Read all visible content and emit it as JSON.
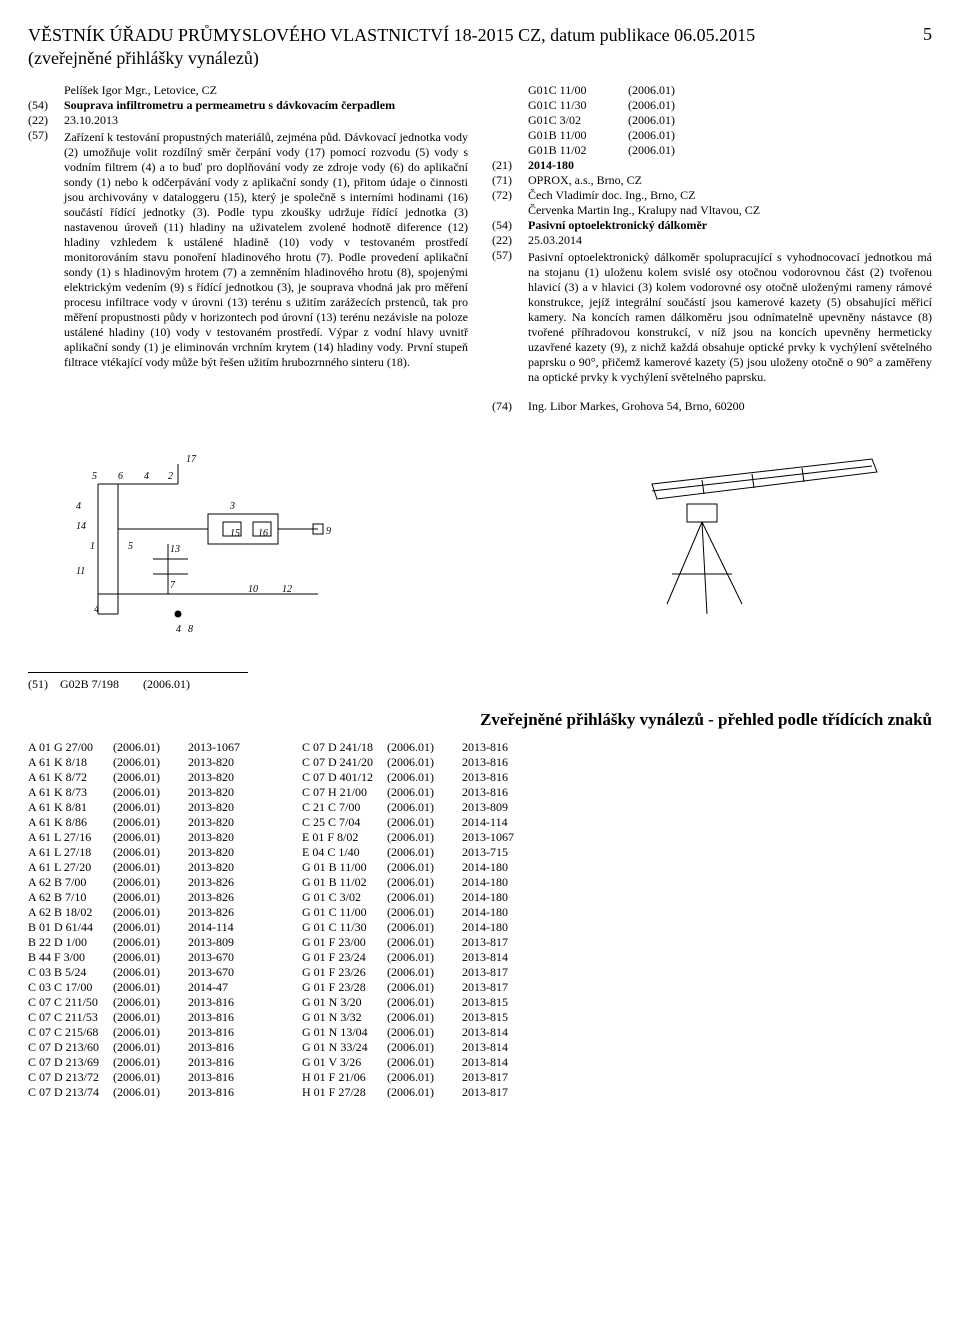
{
  "header": {
    "title_line1": "VĚSTNÍK ÚŘADU PRŮMYSLOVÉHO VLASTNICTVÍ 18-2015 CZ, datum publikace 06.05.2015",
    "title_line2": "(zveřejněné přihlášky vynálezů)",
    "page": "5"
  },
  "left": {
    "author": "Pelíšek Igor Mgr., Letovice, CZ",
    "inid54": "(54)",
    "title": "Souprava infiltrometru a permeametru s dávkovacím čerpadlem",
    "inid22": "(22)",
    "date": "23.10.2013",
    "inid57": "(57)",
    "abstract": "Zařízení k testování propustných materiálů, zejména půd. Dávkovací jednotka vody (2) umožňuje volit rozdílný směr čerpání vody (17) pomocí rozvodu (5) vody s vodním filtrem (4) a to buď pro doplňování vody ze zdroje vody (6) do aplikační sondy (1) nebo k odčerpávání vody z aplikační sondy (1), přitom údaje o činnosti jsou archivovány v dataloggeru (15), který je společně s interními hodinami (16) součástí řídící jednotky (3). Podle typu zkoušky udržuje řídící jednotka (3) nastavenou úroveň (11) hladiny na uživatelem zvolené hodnotě diference (12) hladiny vzhledem k ustálené hladině (10) vody v testovaném prostředí monitorováním stavu ponoření hladinového hrotu (7). Podle provedení aplikační sondy (1) s hladinovým hrotem (7) a zemněním hladinového hrotu (8), spojenými elektrickým vedením (9) s řídící jednotkou (3), je souprava vhodná jak pro měření procesu infiltrace vody v úrovni (13) terénu s užitím zarážecích prstenců, tak pro měření propustnosti půdy v horizontech pod úrovní (13) terénu nezávisle na poloze ustálené hladiny (10) vody v testovaném prostředí. Výpar z vodní hlavy uvnitř aplikační sondy (1) je eliminován vrchním krytem (14) hladiny vody. První stupeň filtrace vtékající vody může být řešen užitím hrubozrnného sinteru (18)."
  },
  "right": {
    "codes": [
      [
        "G01C 11/00",
        "(2006.01)"
      ],
      [
        "G01C 11/30",
        "(2006.01)"
      ],
      [
        "G01C 3/02",
        "(2006.01)"
      ],
      [
        "G01B 11/00",
        "(2006.01)"
      ],
      [
        "G01B 11/02",
        "(2006.01)"
      ]
    ],
    "inid21": "(21)",
    "appnum": "2014-180",
    "inid71": "(71)",
    "applicant": "OPROX, a.s., Brno, CZ",
    "inid72": "(72)",
    "inventor1": "Čech Vladimír doc. Ing., Brno, CZ",
    "inventor2": "Červenka Martin Ing., Kralupy nad Vltavou, CZ",
    "inid54": "(54)",
    "title": "Pasivní optoelektronický dálkoměr",
    "inid22": "(22)",
    "date": "25.03.2014",
    "inid57": "(57)",
    "abstract": "Pasivní optoelektronický dálkoměr spolupracující s vyhodnocovací jednotkou má na stojanu (1) uloženu kolem svislé osy otočnou vodorovnou část (2) tvořenou hlavicí (3) a v hlavici (3) kolem vodorovné osy otočně uloženými rameny rámové konstrukce, jejíž integrální součástí jsou kamerové kazety (5) obsahující měřicí kamery. Na koncích ramen dálkoměru jsou odnímatelně upevněny nástavce (8) tvořené příhradovou konstrukcí, v níž jsou na koncích upevněny hermeticky uzavřené kazety (9), z nichž každá obsahuje optické prvky k vychýlení světelného paprsku o 90°, přičemž kamerové kazety (5) jsou uloženy otočně o 90° a zaměřeny na optické prvky k vychýlení světelného paprsku.",
    "inid74": "(74)",
    "agent": "Ing. Libor Markes, Grohova 54, Brno, 60200"
  },
  "subsection": {
    "code_line": "(51)    G02B 7/198        (2006.01)"
  },
  "overview_heading": "Zveřejněné přihlášky vynálezů - přehled podle třídících znaků",
  "table_left": [
    [
      "A 01 G 27/00",
      "(2006.01)",
      "2013-1067"
    ],
    [
      "A 61 K 8/18",
      "(2006.01)",
      "2013-820"
    ],
    [
      "A 61 K 8/72",
      "(2006.01)",
      "2013-820"
    ],
    [
      "A 61 K 8/73",
      "(2006.01)",
      "2013-820"
    ],
    [
      "A 61 K 8/81",
      "(2006.01)",
      "2013-820"
    ],
    [
      "A 61 K 8/86",
      "(2006.01)",
      "2013-820"
    ],
    [
      "A 61 L 27/16",
      "(2006.01)",
      "2013-820"
    ],
    [
      "A 61 L 27/18",
      "(2006.01)",
      "2013-820"
    ],
    [
      "A 61 L 27/20",
      "(2006.01)",
      "2013-820"
    ],
    [
      "A 62 B 7/00",
      "(2006.01)",
      "2013-826"
    ],
    [
      "A 62 B 7/10",
      "(2006.01)",
      "2013-826"
    ],
    [
      "A 62 B 18/02",
      "(2006.01)",
      "2013-826"
    ],
    [
      "B 01 D 61/44",
      "(2006.01)",
      "2014-114"
    ],
    [
      "B 22 D 1/00",
      "(2006.01)",
      "2013-809"
    ],
    [
      "B 44 F 3/00",
      "(2006.01)",
      "2013-670"
    ],
    [
      "C 03 B 5/24",
      "(2006.01)",
      "2013-670"
    ],
    [
      "C 03 C 17/00",
      "(2006.01)",
      "2014-47"
    ],
    [
      "C 07 C 211/50",
      "(2006.01)",
      "2013-816"
    ],
    [
      "C 07 C 211/53",
      "(2006.01)",
      "2013-816"
    ],
    [
      "C 07 C 215/68",
      "(2006.01)",
      "2013-816"
    ],
    [
      "C 07 D 213/60",
      "(2006.01)",
      "2013-816"
    ],
    [
      "C 07 D 213/69",
      "(2006.01)",
      "2013-816"
    ],
    [
      "C 07 D 213/72",
      "(2006.01)",
      "2013-816"
    ],
    [
      "C 07 D 213/74",
      "(2006.01)",
      "2013-816"
    ]
  ],
  "table_right": [
    [
      "C 07 D 241/18",
      "(2006.01)",
      "2013-816"
    ],
    [
      "C 07 D 241/20",
      "(2006.01)",
      "2013-816"
    ],
    [
      "C 07 D 401/12",
      "(2006.01)",
      "2013-816"
    ],
    [
      "C 07 H 21/00",
      "(2006.01)",
      "2013-816"
    ],
    [
      "C 21 C 7/00",
      "(2006.01)",
      "2013-809"
    ],
    [
      "C 25 C 7/04",
      "(2006.01)",
      "2014-114"
    ],
    [
      "E 01 F 8/02",
      "(2006.01)",
      "2013-1067"
    ],
    [
      "E 04 C 1/40",
      "(2006.01)",
      "2013-715"
    ],
    [
      "G 01 B 11/00",
      "(2006.01)",
      "2014-180"
    ],
    [
      "G 01 B 11/02",
      "(2006.01)",
      "2014-180"
    ],
    [
      "G 01 C 3/02",
      "(2006.01)",
      "2014-180"
    ],
    [
      "G 01 C 11/00",
      "(2006.01)",
      "2014-180"
    ],
    [
      "G 01 C 11/30",
      "(2006.01)",
      "2014-180"
    ],
    [
      "G 01 F 23/00",
      "(2006.01)",
      "2013-817"
    ],
    [
      "G 01 F 23/24",
      "(2006.01)",
      "2013-814"
    ],
    [
      "G 01 F 23/26",
      "(2006.01)",
      "2013-817"
    ],
    [
      "G 01 F 23/28",
      "(2006.01)",
      "2013-817"
    ],
    [
      "G 01 N 3/20",
      "(2006.01)",
      "2013-815"
    ],
    [
      "G 01 N 3/32",
      "(2006.01)",
      "2013-815"
    ],
    [
      "G 01 N 13/04",
      "(2006.01)",
      "2013-814"
    ],
    [
      "G 01 N 33/24",
      "(2006.01)",
      "2013-814"
    ],
    [
      "G 01 V 3/26",
      "(2006.01)",
      "2013-814"
    ],
    [
      "H 01 F 21/06",
      "(2006.01)",
      "2013-817"
    ],
    [
      "H 01 F 27/28",
      "(2006.01)",
      "2013-817"
    ]
  ]
}
